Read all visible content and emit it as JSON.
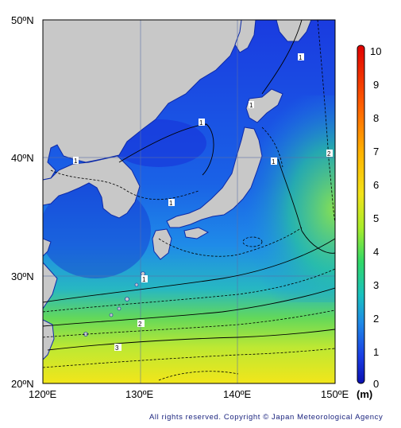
{
  "map": {
    "lat_labels": [
      "50ºN",
      "40ºN",
      "30ºN",
      "20ºN"
    ],
    "lon_labels": [
      "120ºE",
      "130ºE",
      "140ºE",
      "150ºE"
    ],
    "contour_labels": [
      "1",
      "1",
      "1",
      "1",
      "1",
      "1",
      "1",
      "2",
      "2",
      "3"
    ]
  },
  "colorbar": {
    "ticks": [
      "10",
      "9",
      "8",
      "7",
      "6",
      "5",
      "4",
      "3",
      "2",
      "1",
      "0"
    ],
    "unit": "(m)",
    "colors": [
      "#ff0000",
      "#ff6a00",
      "#ffb000",
      "#ffe400",
      "#d8f000",
      "#7de84a",
      "#20d48a",
      "#18b8c8",
      "#1e8ae6",
      "#1a4ee0",
      "#0a10b0"
    ]
  },
  "copyright": "All rights reserved. Copyright © Japan Meteorological Agency"
}
